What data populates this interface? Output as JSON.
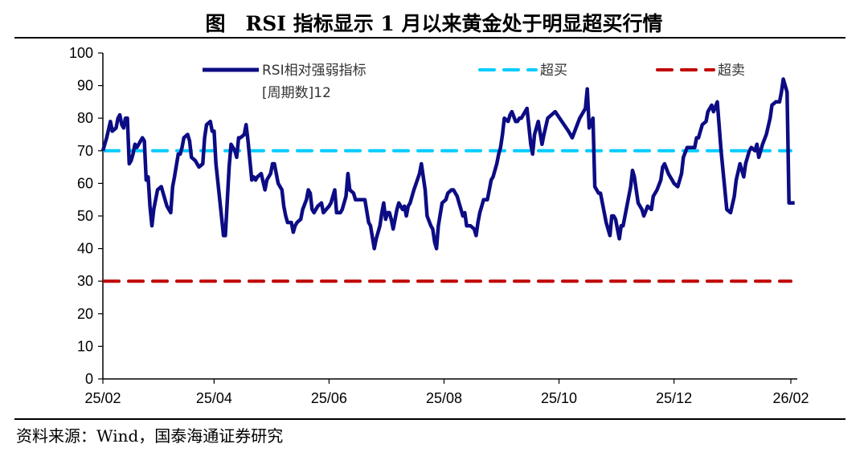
{
  "title": "图　RSI 指标显示 1 月以来黄金处于明显超买行情",
  "source": "资料来源：Wind，国泰海通证券研究",
  "chart_data": {
    "type": "line",
    "title": "图　RSI 指标显示 1 月以来黄金处于明显超买行情",
    "xlabel": "",
    "ylabel": "",
    "ylim": [
      0,
      100
    ],
    "yticks": [
      "0",
      "10",
      "20",
      "30",
      "40",
      "50",
      "60",
      "70",
      "80",
      "90",
      "100"
    ],
    "xlim": [
      "2025-02-01",
      "2026-02-01"
    ],
    "xticks": [
      {
        "date": "2025-02-01",
        "label": "25/02"
      },
      {
        "date": "2025-04-01",
        "label": "25/04"
      },
      {
        "date": "2025-06-01",
        "label": "25/06"
      },
      {
        "date": "2025-08-01",
        "label": "25/08"
      },
      {
        "date": "2025-10-01",
        "label": "25/10"
      },
      {
        "date": "2025-12-01",
        "label": "25/12"
      },
      {
        "date": "2026-02-01",
        "label": "26/02"
      }
    ],
    "grid": false,
    "legend_position": "top",
    "series": [
      {
        "name": "RSI相对强弱指标",
        "name_line2": "[周期数]12",
        "color": "#0c0c84",
        "style": "solid",
        "points": [
          [
            "2025-02-01",
            70
          ],
          [
            "2025-02-03",
            74
          ],
          [
            "2025-02-05",
            79
          ],
          [
            "2025-02-06",
            76
          ],
          [
            "2025-02-08",
            77
          ],
          [
            "2025-02-09",
            80
          ],
          [
            "2025-02-10",
            81
          ],
          [
            "2025-02-11",
            78
          ],
          [
            "2025-02-12",
            77
          ],
          [
            "2025-02-13",
            80
          ],
          [
            "2025-02-14",
            80
          ],
          [
            "2025-02-15",
            66
          ],
          [
            "2025-02-16",
            67
          ],
          [
            "2025-02-17",
            69
          ],
          [
            "2025-02-18",
            72
          ],
          [
            "2025-02-19",
            71
          ],
          [
            "2025-02-20",
            72
          ],
          [
            "2025-02-21",
            73
          ],
          [
            "2025-02-22",
            74
          ],
          [
            "2025-02-23",
            73
          ],
          [
            "2025-02-24",
            61
          ],
          [
            "2025-02-25",
            62
          ],
          [
            "2025-02-26",
            53
          ],
          [
            "2025-02-27",
            47
          ],
          [
            "2025-02-28",
            52
          ],
          [
            "2025-03-02",
            58
          ],
          [
            "2025-03-04",
            59
          ],
          [
            "2025-03-05",
            57
          ],
          [
            "2025-03-07",
            53
          ],
          [
            "2025-03-09",
            51
          ],
          [
            "2025-03-10",
            59
          ],
          [
            "2025-03-11",
            62
          ],
          [
            "2025-03-13",
            69
          ],
          [
            "2025-03-14",
            69
          ],
          [
            "2025-03-15",
            71
          ],
          [
            "2025-03-16",
            74
          ],
          [
            "2025-03-18",
            75
          ],
          [
            "2025-03-19",
            73
          ],
          [
            "2025-03-20",
            68
          ],
          [
            "2025-03-22",
            67
          ],
          [
            "2025-03-24",
            65
          ],
          [
            "2025-03-26",
            66
          ],
          [
            "2025-03-27",
            74
          ],
          [
            "2025-03-28",
            78
          ],
          [
            "2025-03-30",
            79
          ],
          [
            "2025-03-31",
            76
          ],
          [
            "2025-04-01",
            76
          ],
          [
            "2025-04-02",
            66
          ],
          [
            "2025-04-04",
            55
          ],
          [
            "2025-04-06",
            44
          ],
          [
            "2025-04-07",
            44
          ],
          [
            "2025-04-09",
            65
          ],
          [
            "2025-04-10",
            72
          ],
          [
            "2025-04-12",
            70
          ],
          [
            "2025-04-13",
            68
          ],
          [
            "2025-04-14",
            74
          ],
          [
            "2025-04-15",
            74
          ],
          [
            "2025-04-17",
            75
          ],
          [
            "2025-04-18",
            78
          ],
          [
            "2025-04-19",
            73
          ],
          [
            "2025-04-21",
            61
          ],
          [
            "2025-04-22",
            62
          ],
          [
            "2025-04-23",
            61
          ],
          [
            "2025-04-24",
            62
          ],
          [
            "2025-04-26",
            63
          ],
          [
            "2025-04-28",
            58
          ],
          [
            "2025-04-29",
            61
          ],
          [
            "2025-05-01",
            63
          ],
          [
            "2025-05-02",
            66
          ],
          [
            "2025-05-03",
            66
          ],
          [
            "2025-05-05",
            60
          ],
          [
            "2025-05-07",
            58
          ],
          [
            "2025-05-08",
            53
          ],
          [
            "2025-05-09",
            50
          ],
          [
            "2025-05-10",
            48
          ],
          [
            "2025-05-12",
            48
          ],
          [
            "2025-05-13",
            45
          ],
          [
            "2025-05-14",
            47
          ],
          [
            "2025-05-15",
            48
          ],
          [
            "2025-05-17",
            49
          ],
          [
            "2025-05-18",
            52
          ],
          [
            "2025-05-20",
            55
          ],
          [
            "2025-05-21",
            58
          ],
          [
            "2025-05-22",
            57
          ],
          [
            "2025-05-23",
            52
          ],
          [
            "2025-05-24",
            51
          ],
          [
            "2025-05-26",
            53
          ],
          [
            "2025-05-28",
            54
          ],
          [
            "2025-05-29",
            51
          ],
          [
            "2025-06-01",
            53
          ],
          [
            "2025-06-02",
            54
          ],
          [
            "2025-06-03",
            56
          ],
          [
            "2025-06-04",
            58
          ],
          [
            "2025-06-05",
            51
          ],
          [
            "2025-06-07",
            51
          ],
          [
            "2025-06-08",
            52
          ],
          [
            "2025-06-10",
            56
          ],
          [
            "2025-06-11",
            63
          ],
          [
            "2025-06-12",
            58
          ],
          [
            "2025-06-14",
            57
          ],
          [
            "2025-06-15",
            55
          ],
          [
            "2025-06-16",
            55
          ],
          [
            "2025-06-20",
            55
          ],
          [
            "2025-06-22",
            48
          ],
          [
            "2025-06-23",
            47
          ],
          [
            "2025-06-25",
            40
          ],
          [
            "2025-06-26",
            43
          ],
          [
            "2025-06-28",
            47
          ],
          [
            "2025-06-29",
            51
          ],
          [
            "2025-06-30",
            54
          ],
          [
            "2025-07-01",
            49
          ],
          [
            "2025-07-02",
            51
          ],
          [
            "2025-07-03",
            51
          ],
          [
            "2025-07-04",
            49
          ],
          [
            "2025-07-05",
            46
          ],
          [
            "2025-07-07",
            52
          ],
          [
            "2025-07-08",
            54
          ],
          [
            "2025-07-10",
            52
          ],
          [
            "2025-07-11",
            53
          ],
          [
            "2025-07-12",
            50
          ],
          [
            "2025-07-13",
            53
          ],
          [
            "2025-07-14",
            54
          ],
          [
            "2025-07-16",
            58
          ],
          [
            "2025-07-19",
            63
          ],
          [
            "2025-07-20",
            66
          ],
          [
            "2025-07-22",
            58
          ],
          [
            "2025-07-23",
            50
          ],
          [
            "2025-07-25",
            47
          ],
          [
            "2025-07-26",
            46
          ],
          [
            "2025-07-27",
            42
          ],
          [
            "2025-07-28",
            40
          ],
          [
            "2025-07-29",
            47
          ],
          [
            "2025-07-31",
            54
          ],
          [
            "2025-08-02",
            55
          ],
          [
            "2025-08-03",
            57
          ],
          [
            "2025-08-05",
            58
          ],
          [
            "2025-08-06",
            58
          ],
          [
            "2025-08-08",
            56
          ],
          [
            "2025-08-09",
            54
          ],
          [
            "2025-08-10",
            52
          ],
          [
            "2025-08-11",
            50
          ],
          [
            "2025-08-12",
            51
          ],
          [
            "2025-08-13",
            47
          ],
          [
            "2025-08-15",
            47
          ],
          [
            "2025-08-17",
            46
          ],
          [
            "2025-08-18",
            44
          ],
          [
            "2025-08-19",
            48
          ],
          [
            "2025-08-20",
            51
          ],
          [
            "2025-08-21",
            53
          ],
          [
            "2025-08-22",
            55
          ],
          [
            "2025-08-24",
            55
          ],
          [
            "2025-08-25",
            58
          ],
          [
            "2025-08-26",
            61
          ],
          [
            "2025-08-27",
            62
          ],
          [
            "2025-08-29",
            66
          ],
          [
            "2025-08-30",
            69
          ],
          [
            "2025-08-31",
            71
          ],
          [
            "2025-09-01",
            75
          ],
          [
            "2025-09-02",
            80
          ],
          [
            "2025-09-04",
            79
          ],
          [
            "2025-09-05",
            81
          ],
          [
            "2025-09-06",
            82
          ],
          [
            "2025-09-08",
            79
          ],
          [
            "2025-09-09",
            79
          ],
          [
            "2025-09-10",
            80
          ],
          [
            "2025-09-11",
            80
          ],
          [
            "2025-09-12",
            81
          ],
          [
            "2025-09-14",
            83
          ],
          [
            "2025-09-16",
            72
          ],
          [
            "2025-09-17",
            69
          ],
          [
            "2025-09-18",
            75
          ],
          [
            "2025-09-20",
            79
          ],
          [
            "2025-09-22",
            72
          ],
          [
            "2025-09-23",
            75
          ],
          [
            "2025-09-25",
            80
          ],
          [
            "2025-09-29",
            82
          ],
          [
            "2025-10-06",
            76
          ],
          [
            "2025-10-08",
            74
          ],
          [
            "2025-10-12",
            80
          ],
          [
            "2025-10-15",
            83
          ],
          [
            "2025-10-16",
            89
          ],
          [
            "2025-10-17",
            77
          ],
          [
            "2025-10-19",
            80
          ],
          [
            "2025-10-20",
            59
          ],
          [
            "2025-10-22",
            57
          ],
          [
            "2025-10-23",
            57
          ],
          [
            "2025-10-24",
            54
          ],
          [
            "2025-10-26",
            48
          ],
          [
            "2025-10-28",
            44
          ],
          [
            "2025-10-29",
            50
          ],
          [
            "2025-10-30",
            50
          ],
          [
            "2025-10-31",
            49
          ],
          [
            "2025-11-02",
            43
          ],
          [
            "2025-11-03",
            47
          ],
          [
            "2025-11-04",
            47
          ],
          [
            "2025-11-06",
            53
          ],
          [
            "2025-11-08",
            59
          ],
          [
            "2025-11-09",
            64
          ],
          [
            "2025-11-10",
            62
          ],
          [
            "2025-11-12",
            54
          ],
          [
            "2025-11-14",
            52
          ],
          [
            "2025-11-15",
            50
          ],
          [
            "2025-11-17",
            53
          ],
          [
            "2025-11-19",
            52
          ],
          [
            "2025-11-20",
            56
          ],
          [
            "2025-11-22",
            58
          ],
          [
            "2025-11-24",
            61
          ],
          [
            "2025-11-25",
            65
          ],
          [
            "2025-11-26",
            66
          ],
          [
            "2025-11-28",
            63
          ],
          [
            "2025-11-30",
            61
          ],
          [
            "2025-12-01",
            60
          ],
          [
            "2025-12-03",
            59
          ],
          [
            "2025-12-05",
            63
          ],
          [
            "2025-12-06",
            68
          ],
          [
            "2025-12-08",
            71
          ],
          [
            "2025-12-10",
            71
          ],
          [
            "2025-12-12",
            71
          ],
          [
            "2025-12-13",
            74
          ],
          [
            "2025-12-14",
            74
          ],
          [
            "2025-12-16",
            78
          ],
          [
            "2025-12-18",
            79
          ],
          [
            "2025-12-19",
            82
          ],
          [
            "2025-12-21",
            84
          ],
          [
            "2025-12-22",
            82
          ],
          [
            "2025-12-24",
            85
          ],
          [
            "2025-12-26",
            70
          ],
          [
            "2025-12-29",
            52
          ],
          [
            "2025-12-31",
            51
          ],
          [
            "2026-01-02",
            56
          ],
          [
            "2026-01-03",
            61
          ],
          [
            "2026-01-05",
            66
          ],
          [
            "2026-01-07",
            62
          ],
          [
            "2026-01-08",
            66
          ],
          [
            "2026-01-10",
            70
          ],
          [
            "2026-01-11",
            71
          ],
          [
            "2026-01-13",
            70
          ],
          [
            "2026-01-14",
            72
          ],
          [
            "2026-01-15",
            68
          ],
          [
            "2026-01-17",
            72
          ],
          [
            "2026-01-19",
            75
          ],
          [
            "2026-01-21",
            80
          ],
          [
            "2026-01-22",
            84
          ],
          [
            "2026-01-24",
            85
          ],
          [
            "2026-01-26",
            85
          ],
          [
            "2026-01-27",
            88
          ],
          [
            "2026-01-28",
            92
          ],
          [
            "2026-01-30",
            88
          ],
          [
            "2026-01-31",
            54
          ],
          [
            "2026-02-02",
            54
          ],
          [
            "2026-02-03",
            54
          ]
        ]
      },
      {
        "name": "超买",
        "color": "#00ccff",
        "style": "dashed",
        "value": 70
      },
      {
        "name": "超卖",
        "color": "#c00000",
        "style": "dashed",
        "value": 30
      }
    ]
  }
}
